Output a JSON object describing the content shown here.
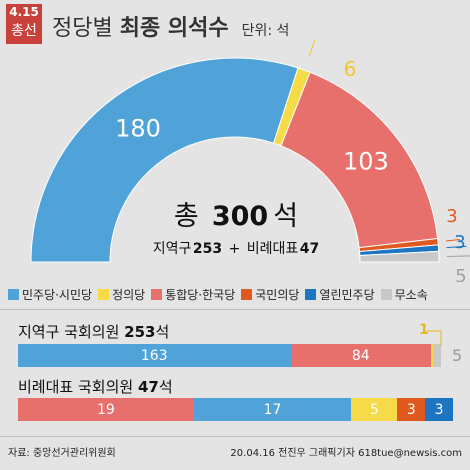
{
  "header": {
    "badge_line1": "4.15",
    "badge_line2": "총선",
    "title_prefix": "정당별",
    "title_strong": "최종 의석수",
    "unit": "단위: 석"
  },
  "center": {
    "total_prefix": "총",
    "total_value": "300",
    "total_unit": "석",
    "sub_prefix": "지역구",
    "sub_district": "253",
    "sub_plus": "+",
    "sub_mid": "비례대표",
    "sub_pr": "47"
  },
  "colors": {
    "minju": "#4fa3d8",
    "jeongui": "#f6da47",
    "tonghap": "#e8706c",
    "gukmin": "#e05a20",
    "yeollin": "#1d74c1",
    "musosok": "#c8c8c8",
    "badge": "#c8413a"
  },
  "legend": [
    {
      "label": "민주당·시민당",
      "color": "#4fa3d8"
    },
    {
      "label": "정의당",
      "color": "#f6da47"
    },
    {
      "label": "통합당·한국당",
      "color": "#e8706c"
    },
    {
      "label": "국민의당",
      "color": "#e05a20"
    },
    {
      "label": "열린민주당",
      "color": "#1d74c1"
    },
    {
      "label": "무소속",
      "color": "#c8c8c8"
    }
  ],
  "district": {
    "title_prefix": "지역구 국회의원",
    "title_value": "253",
    "title_unit": "석",
    "outside_labels": [
      "1",
      "5"
    ]
  },
  "proportional": {
    "title_prefix": "비례대표 국회의원",
    "title_value": "47",
    "title_unit": "석"
  },
  "footer": {
    "source": "자료: 중앙선거관리위원회",
    "credit": "20.04.16 전진우 그래픽기자 618tue@newsis.com"
  },
  "chart_data": [
    {
      "type": "pie",
      "style": "half-donut",
      "total": 300,
      "slices": [
        {
          "label": "민주당·시민당",
          "value": 180,
          "color": "#4fa3d8"
        },
        {
          "label": "정의당",
          "value": 6,
          "color": "#f6da47"
        },
        {
          "label": "통합당·한국당",
          "value": 103,
          "color": "#e8706c"
        },
        {
          "label": "국민의당",
          "value": 3,
          "color": "#e05a20"
        },
        {
          "label": "열린민주당",
          "value": 3,
          "color": "#1d74c1"
        },
        {
          "label": "무소속",
          "value": 5,
          "color": "#c8c8c8"
        }
      ]
    },
    {
      "type": "bar",
      "orientation": "horizontal-stacked",
      "title": "지역구 국회의원 253석",
      "total": 253,
      "series": [
        {
          "name": "민주당·시민당",
          "values": [
            163
          ],
          "color": "#4fa3d8"
        },
        {
          "name": "통합당·한국당",
          "values": [
            84
          ],
          "color": "#e8706c"
        },
        {
          "name": "정의당",
          "values": [
            1
          ],
          "color": "#f6da47"
        },
        {
          "name": "무소속",
          "values": [
            5
          ],
          "color": "#c8c8c8"
        }
      ]
    },
    {
      "type": "bar",
      "orientation": "horizontal-stacked",
      "title": "비례대표 국회의원 47석",
      "total": 47,
      "series": [
        {
          "name": "통합당·한국당",
          "values": [
            19
          ],
          "color": "#e8706c"
        },
        {
          "name": "민주당·시민당",
          "values": [
            17
          ],
          "color": "#4fa3d8"
        },
        {
          "name": "정의당",
          "values": [
            5
          ],
          "color": "#f6da47"
        },
        {
          "name": "국민의당",
          "values": [
            3
          ],
          "color": "#e05a20"
        },
        {
          "name": "열린민주당",
          "values": [
            3
          ],
          "color": "#1d74c1"
        }
      ]
    }
  ]
}
